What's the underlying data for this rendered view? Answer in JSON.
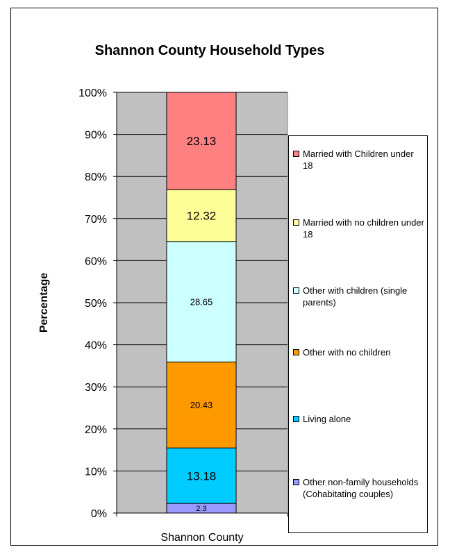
{
  "chart_data": {
    "type": "bar",
    "stacked": true,
    "percent_stacked": true,
    "title": "Shannon County Household Types",
    "ylabel": "Percentage",
    "xlabel": "",
    "categories": [
      "Shannon County"
    ],
    "ylim": [
      0,
      100
    ],
    "yticks": [
      "0%",
      "10%",
      "20%",
      "30%",
      "40%",
      "50%",
      "60%",
      "70%",
      "80%",
      "90%",
      "100%"
    ],
    "grid": true,
    "legend_position": "right",
    "series": [
      {
        "name": "Other non-family households (Cohabitating couples)",
        "values": [
          2.3
        ],
        "label": "2.3",
        "color": "#9999ff"
      },
      {
        "name": "Living alone",
        "values": [
          13.18
        ],
        "label": "13.18",
        "color": "#00ccff"
      },
      {
        "name": "Other with no children",
        "values": [
          20.43
        ],
        "label": "20.43",
        "color": "#ff9900"
      },
      {
        "name": "Other with children (single parents)",
        "values": [
          28.65
        ],
        "label": "28.65",
        "color": "#ccffff"
      },
      {
        "name": "Married with no children under 18",
        "values": [
          12.32
        ],
        "label": "12.32",
        "color": "#ffff99"
      },
      {
        "name": "Married with Children under 18",
        "values": [
          23.13
        ],
        "label": "23.13",
        "color": "#ff8080"
      }
    ],
    "plot_background": "#c0c0c0"
  }
}
